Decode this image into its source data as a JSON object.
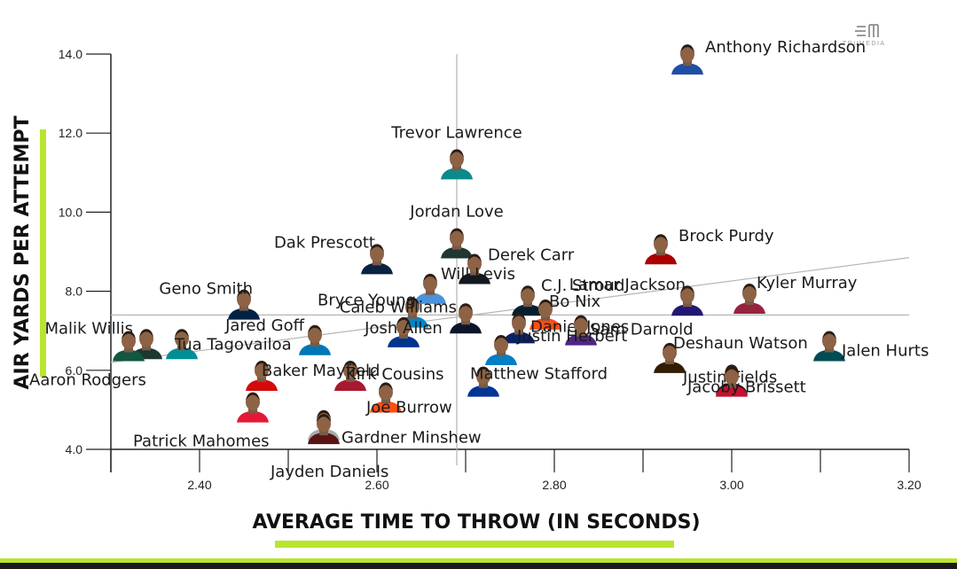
{
  "brand": {
    "name": "TRUMEDIA"
  },
  "chart_data": {
    "type": "scatter",
    "xlabel": "AVERAGE TIME TO THROW (IN SECONDS)",
    "ylabel": "AIR YARDS PER ATTEMPT",
    "xlim": [
      2.3,
      3.2
    ],
    "ylim": [
      4.0,
      14.0
    ],
    "x_ticks": [
      "2.40",
      "2.60",
      "2.80",
      "3.00",
      "3.20"
    ],
    "y_ticks": [
      "4.0",
      "6.0",
      "8.0",
      "10.0",
      "12.0",
      "14.0"
    ],
    "reference_lines": {
      "x_avg": 2.69,
      "y_avg": 7.4
    },
    "trendline": {
      "x": [
        2.3,
        3.2
      ],
      "y": [
        6.2,
        8.85
      ]
    },
    "grid": false,
    "accent_color": "#b8e62e",
    "points": [
      {
        "name": "Anthony Richardson",
        "x": 2.95,
        "y": 13.75,
        "jersey": "#1f4ea3"
      },
      {
        "name": "Trevor Lawrence",
        "x": 2.69,
        "y": 11.1,
        "jersey": "#0b8a8c"
      },
      {
        "name": "Jordan Love",
        "x": 2.69,
        "y": 9.1,
        "jersey": "#203731"
      },
      {
        "name": "Brock Purdy",
        "x": 2.92,
        "y": 8.95,
        "jersey": "#aa0000"
      },
      {
        "name": "Dak Prescott",
        "x": 2.6,
        "y": 8.7,
        "jersey": "#0a2240"
      },
      {
        "name": "Derek Carr",
        "x": 2.71,
        "y": 8.45,
        "jersey": "#101820"
      },
      {
        "name": "Will Levis",
        "x": 2.66,
        "y": 7.95,
        "jersey": "#4b92db"
      },
      {
        "name": "Kyler Murray",
        "x": 3.02,
        "y": 7.7,
        "jersey": "#97233f"
      },
      {
        "name": "Geno Smith",
        "x": 2.45,
        "y": 7.55,
        "jersey": "#002244"
      },
      {
        "name": "C.J. Stroud",
        "x": 2.77,
        "y": 7.65,
        "jersey": "#03202f"
      },
      {
        "name": "Lamar Jackson",
        "x": 2.95,
        "y": 7.65,
        "jersey": "#241773"
      },
      {
        "name": "Bryce Young",
        "x": 2.64,
        "y": 7.35,
        "jersey": "#0085ca"
      },
      {
        "name": "Caleb Williams",
        "x": 2.7,
        "y": 7.2,
        "jersey": "#0b162a"
      },
      {
        "name": "Bo Nix",
        "x": 2.79,
        "y": 7.3,
        "jersey": "#fb4f14"
      },
      {
        "name": "Jared Goff",
        "x": 2.53,
        "y": 6.65,
        "jersey": "#0076b6"
      },
      {
        "name": "Tua Tagovailoa",
        "x": 2.38,
        "y": 6.55,
        "jersey": "#008e97"
      },
      {
        "name": "Malik Willis",
        "x": 2.34,
        "y": 6.55,
        "jersey": "#203731"
      },
      {
        "name": "Aaron Rodgers",
        "x": 2.32,
        "y": 6.5,
        "jersey": "#125740"
      },
      {
        "name": "Josh Allen",
        "x": 2.63,
        "y": 6.85,
        "jersey": "#00338d"
      },
      {
        "name": "Daniel Jones",
        "x": 2.76,
        "y": 6.95,
        "jersey": "#0b2265"
      },
      {
        "name": "Sam Darnold",
        "x": 2.83,
        "y": 6.9,
        "jersey": "#4f2683"
      },
      {
        "name": "Deshaun Watson",
        "x": 2.93,
        "y": 6.2,
        "jersey": "#311d00"
      },
      {
        "name": "Justin Herbert",
        "x": 2.74,
        "y": 6.4,
        "jersey": "#0080c6"
      },
      {
        "name": "Jalen Hurts",
        "x": 3.11,
        "y": 6.5,
        "jersey": "#004c54"
      },
      {
        "name": "Kirk Cousins",
        "x": 2.57,
        "y": 5.75,
        "jersey": "#a71930"
      },
      {
        "name": "Baker Mayfield",
        "x": 2.47,
        "y": 5.75,
        "jersey": "#d50a0a"
      },
      {
        "name": "Joe Burrow",
        "x": 2.61,
        "y": 5.2,
        "jersey": "#fb4f14"
      },
      {
        "name": "Matthew Stafford",
        "x": 2.72,
        "y": 5.6,
        "jersey": "#003594"
      },
      {
        "name": "Justin Fields",
        "x": 3.0,
        "y": 5.65,
        "jersey": "#101820"
      },
      {
        "name": "Jacoby Brissett",
        "x": 3.0,
        "y": 5.6,
        "jersey": "#c8102e"
      },
      {
        "name": "Patrick Mahomes",
        "x": 2.46,
        "y": 4.95,
        "jersey": "#e31837"
      },
      {
        "name": "Gardner Minshew",
        "x": 2.54,
        "y": 4.5,
        "jersey": "#a5acaf"
      },
      {
        "name": "Jayden Daniels",
        "x": 2.54,
        "y": 4.4,
        "jersey": "#5a1414"
      }
    ]
  }
}
